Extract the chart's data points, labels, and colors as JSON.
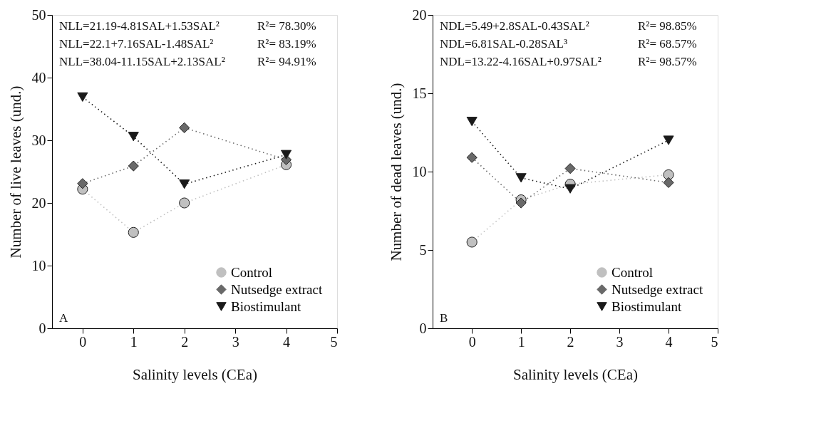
{
  "chart_data": [
    {
      "type": "line",
      "xlabel": "Salinity levels (CEa)",
      "ylabel": "Number of live leaves (und.)",
      "x": [
        0,
        1,
        2,
        4
      ],
      "xlim": [
        -0.6,
        5
      ],
      "xticks": [
        0,
        1,
        2,
        3,
        4,
        5
      ],
      "ylim": [
        0,
        50
      ],
      "yticks": [
        0,
        10,
        20,
        30,
        40,
        50
      ],
      "grid": false,
      "legend": "bottom right",
      "line_style": "dotted",
      "series": [
        {
          "name": "Control",
          "color": "#c0c0c0",
          "marker": "circle",
          "values": [
            22.2,
            15.3,
            20.0,
            26.1
          ]
        },
        {
          "name": "Nutsedge extract",
          "color": "#696969",
          "marker": "diamond",
          "values": [
            23.1,
            25.9,
            32.0,
            26.9
          ]
        },
        {
          "name": "Biostimulant",
          "color": "#1a1a1a",
          "marker": "triangle",
          "values": [
            36.9,
            30.6,
            23.0,
            27.7
          ]
        }
      ],
      "annotations": [
        "NLL=21.19-4.81SAL+1.53SAL²",
        "R²= 78.30%",
        "NLL=22.1+7.16SAL-1.48SAL²",
        "R²= 83.19%",
        "NLL=38.04-11.15SAL+2.13SAL²",
        "R²= 94.91%",
        "A"
      ]
    },
    {
      "type": "line",
      "xlabel": "Salinity levels (CEa)",
      "ylabel": "Number of dead leaves (und.)",
      "x": [
        0,
        1,
        2,
        4
      ],
      "xlim": [
        -0.8,
        5
      ],
      "xticks": [
        0,
        1,
        2,
        3,
        4,
        5
      ],
      "ylim": [
        0,
        20
      ],
      "yticks": [
        0,
        5,
        10,
        15,
        20
      ],
      "grid": false,
      "legend": "bottom right",
      "line_style": "dotted",
      "series": [
        {
          "name": "Control",
          "color": "#c0c0c0",
          "marker": "circle",
          "values": [
            5.5,
            8.2,
            9.2,
            9.8
          ]
        },
        {
          "name": "Nutsedge extract",
          "color": "#696969",
          "marker": "diamond",
          "values": [
            10.9,
            8.0,
            10.2,
            9.3
          ]
        },
        {
          "name": "Biostimulant",
          "color": "#1a1a1a",
          "marker": "triangle",
          "values": [
            13.2,
            9.6,
            8.9,
            12.0
          ]
        }
      ],
      "annotations": [
        "NDL=5.49+2.8SAL-0.43SAL²",
        "R²= 98.85%",
        "NDL=6.81SAL-0.28SAL³",
        "R²= 68.57%",
        "NDL=13.22-4.16SAL+0.97SAL²",
        "R²= 98.57%",
        "B"
      ]
    }
  ]
}
